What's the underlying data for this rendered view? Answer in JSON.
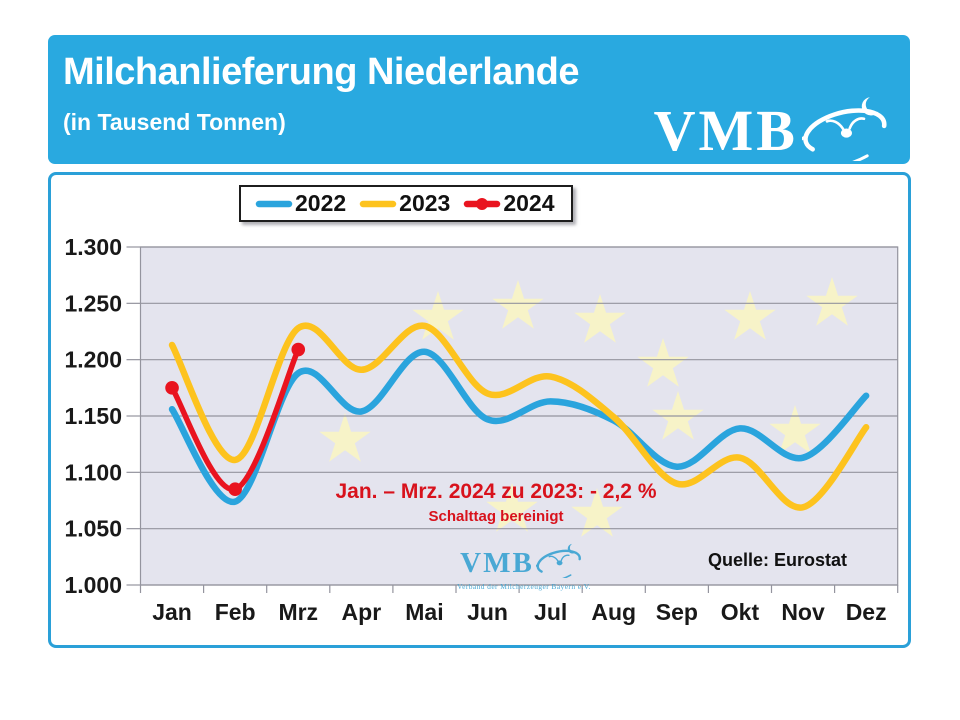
{
  "header": {
    "title": "Milchanlieferung Niederlande",
    "subtitle": "(in Tausend Tonnen)",
    "logo_text": "VMB",
    "background_color": "#29a9e0",
    "text_color": "#ffffff"
  },
  "legend": {
    "items": [
      {
        "label": "2022",
        "color": "#2aa4dd",
        "marker": "line"
      },
      {
        "label": "2023",
        "color": "#fdc31e",
        "marker": "line"
      },
      {
        "label": "2024",
        "color": "#e9141f",
        "marker": "line-dot"
      }
    ]
  },
  "chart_data": {
    "type": "line",
    "title": "Milchanlieferung Niederlande (in Tausend Tonnen)",
    "unit": "Tausend Tonnen",
    "categories": [
      "Jan",
      "Feb",
      "Mrz",
      "Apr",
      "Mai",
      "Jun",
      "Jul",
      "Aug",
      "Sep",
      "Okt",
      "Nov",
      "Dez"
    ],
    "series": [
      {
        "name": "2022",
        "color": "#2aa4dd",
        "values": [
          1156,
          1074,
          1188,
          1154,
          1207,
          1147,
          1163,
          1146,
          1105,
          1139,
          1113,
          1168
        ]
      },
      {
        "name": "2023",
        "color": "#fdc31e",
        "values": [
          1213,
          1111,
          1228,
          1191,
          1230,
          1170,
          1185,
          1149,
          1090,
          1113,
          1069,
          1140
        ]
      },
      {
        "name": "2024",
        "color": "#e9141f",
        "markers": true,
        "values": [
          1175,
          1085,
          1209
        ]
      }
    ],
    "ylim": [
      1000,
      1300
    ],
    "ytick_step": 50,
    "ytick_labels": [
      "1.300",
      "1.250",
      "1.200",
      "1.150",
      "1.100",
      "1.050",
      "1.000"
    ],
    "grid": true,
    "legend_position": "top",
    "plot_background": "#e4e4ee",
    "gridline_color": "#94949e",
    "axis_label_color": "#191919",
    "watermark_stars_color": "#f7f3c8",
    "smoothed": true
  },
  "annotations": {
    "comparison": "Jan. – Mrz. 2024 zu 2023: - 2,2 %",
    "note": "Schalttag bereinigt",
    "color": "#d8121c"
  },
  "source": {
    "label": "Quelle: Eurostat"
  },
  "watermark": {
    "logo_text": "VMB",
    "caption": "Verband der Milcherzeuger Bayern e.V.",
    "color": "#41a5d3"
  }
}
